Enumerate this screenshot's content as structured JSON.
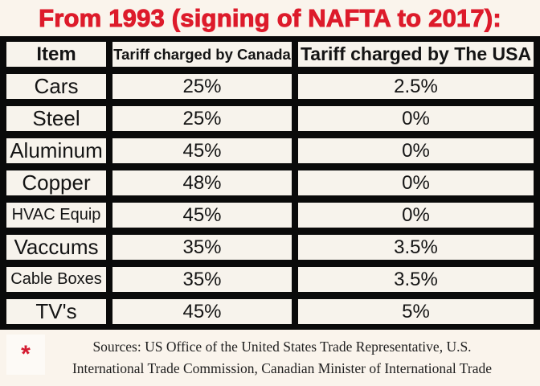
{
  "title": "From 1993 (signing of NAFTA to 2017):",
  "colors": {
    "accent_red": "#dd1b2b",
    "table_black": "#0a0a0a",
    "cell_background": "#f7f3ec",
    "page_background": "#faf4ec"
  },
  "table": {
    "headers": [
      "Item",
      "Tariff charged by Canada",
      "Tariff charged by The USA"
    ],
    "rows": [
      {
        "item": "Cars",
        "canada": "25%",
        "usa": "2.5%"
      },
      {
        "item": "Steel",
        "canada": "25%",
        "usa": "0%"
      },
      {
        "item": "Aluminum",
        "canada": "45%",
        "usa": "0%"
      },
      {
        "item": "Copper",
        "canada": "48%",
        "usa": "0%"
      },
      {
        "item": "HVAC Equip",
        "canada": "45%",
        "usa": "0%"
      },
      {
        "item": "Vaccums",
        "canada": "35%",
        "usa": "3.5%"
      },
      {
        "item": "Cable Boxes",
        "canada": "35%",
        "usa": "3.5%"
      },
      {
        "item": "TV's",
        "canada": "45%",
        "usa": "5%"
      }
    ]
  },
  "footnote": {
    "marker": "*",
    "line1": "Sources: US Office of the United States Trade Representative, U.S.",
    "line2": "International Trade Commission, Canadian Minister of International Trade"
  }
}
